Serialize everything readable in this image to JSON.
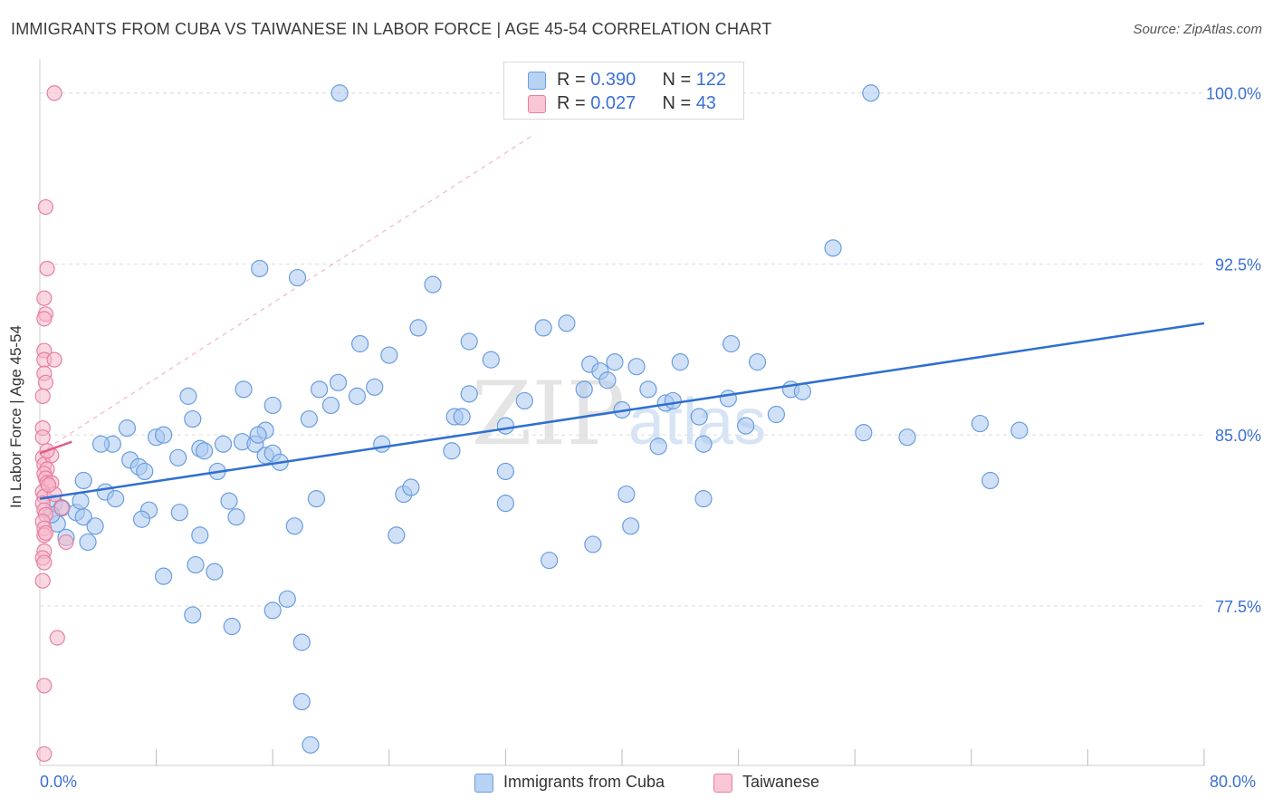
{
  "header": {
    "title": "IMMIGRANTS FROM CUBA VS TAIWANESE IN LABOR FORCE | AGE 45-54 CORRELATION CHART",
    "source": "Source: ZipAtlas.com"
  },
  "legend_top": {
    "rows": [
      {
        "r_label": "R = ",
        "r_value": "0.390",
        "n_label": "N = ",
        "n_value": "122"
      },
      {
        "r_label": "R = ",
        "r_value": "0.027",
        "n_label": "N = ",
        "n_value": "43"
      }
    ]
  },
  "legend_bottom": {
    "items": [
      {
        "label": "Immigrants from Cuba"
      },
      {
        "label": "Taiwanese"
      }
    ]
  },
  "watermark": {
    "zip": "ZIP",
    "atlas": "atlas"
  },
  "colors": {
    "blue_fill": "#aac8f0",
    "blue_stroke": "#6a9de0",
    "blue_line": "#2f6fd0",
    "pink_fill": "#f6b8cb",
    "pink_stroke": "#e87fa0",
    "pink_line": "#e0608c",
    "axis_text": "#3a6fd8",
    "grid": "#dddddd"
  },
  "chart_data": {
    "type": "scatter",
    "title": "IMMIGRANTS FROM CUBA VS TAIWANESE IN LABOR FORCE | AGE 45-54 CORRELATION CHART",
    "xlabel": "",
    "ylabel": "In Labor Force | Age 45-54",
    "xlim": [
      0,
      80
    ],
    "ylim": [
      70.5,
      101.5
    ],
    "x_tick_labels": [
      "0.0%",
      "80.0%"
    ],
    "y_ticks": [
      77.5,
      85.0,
      92.5,
      100.0
    ],
    "y_tick_labels": [
      "77.5%",
      "85.0%",
      "92.5%",
      "100.0%"
    ],
    "grid": true,
    "legend_position": "top-center",
    "series": [
      {
        "name": "Immigrants from Cuba",
        "color": "#aac8f0",
        "trend": {
          "x": [
            0,
            80
          ],
          "y": [
            82.2,
            89.9
          ]
        },
        "points": [
          [
            1.0,
            82.0
          ],
          [
            1.5,
            81.8
          ],
          [
            2.5,
            81.6
          ],
          [
            1.2,
            81.1
          ],
          [
            0.8,
            81.5
          ],
          [
            1.8,
            80.5
          ],
          [
            3.3,
            80.3
          ],
          [
            3.0,
            81.4
          ],
          [
            2.8,
            82.1
          ],
          [
            3.8,
            81.0
          ],
          [
            3.0,
            83.0
          ],
          [
            4.5,
            82.5
          ],
          [
            5.2,
            82.2
          ],
          [
            6.2,
            83.9
          ],
          [
            6.8,
            83.6
          ],
          [
            7.2,
            83.4
          ],
          [
            5.0,
            84.6
          ],
          [
            4.2,
            84.6
          ],
          [
            6.0,
            85.3
          ],
          [
            8.0,
            84.9
          ],
          [
            8.5,
            85.0
          ],
          [
            7.5,
            81.7
          ],
          [
            7.0,
            81.3
          ],
          [
            9.6,
            81.6
          ],
          [
            9.5,
            84.0
          ],
          [
            10.5,
            85.7
          ],
          [
            11.0,
            84.4
          ],
          [
            11.3,
            84.3
          ],
          [
            12.6,
            84.6
          ],
          [
            13.9,
            84.7
          ],
          [
            14.8,
            84.6
          ],
          [
            15.5,
            84.1
          ],
          [
            16.0,
            84.2
          ],
          [
            16.5,
            83.8
          ],
          [
            12.2,
            83.4
          ],
          [
            10.2,
            86.7
          ],
          [
            13.0,
            82.1
          ],
          [
            13.5,
            81.4
          ],
          [
            10.7,
            79.3
          ],
          [
            12.0,
            79.0
          ],
          [
            11.0,
            80.6
          ],
          [
            8.5,
            78.8
          ],
          [
            10.5,
            77.1
          ],
          [
            13.2,
            76.6
          ],
          [
            16.0,
            77.3
          ],
          [
            17.0,
            77.8
          ],
          [
            18.0,
            75.9
          ],
          [
            18.0,
            73.3
          ],
          [
            18.6,
            71.4
          ],
          [
            17.5,
            81.0
          ],
          [
            18.5,
            85.7
          ],
          [
            19.0,
            82.2
          ],
          [
            19.2,
            87.0
          ],
          [
            20.0,
            86.3
          ],
          [
            20.5,
            87.3
          ],
          [
            21.8,
            86.7
          ],
          [
            22.0,
            89.0
          ],
          [
            23.0,
            87.1
          ],
          [
            24.0,
            88.5
          ],
          [
            23.5,
            84.6
          ],
          [
            24.5,
            80.6
          ],
          [
            25.0,
            82.4
          ],
          [
            25.5,
            82.7
          ],
          [
            26.0,
            89.7
          ],
          [
            27.0,
            91.6
          ],
          [
            28.3,
            84.3
          ],
          [
            28.5,
            85.8
          ],
          [
            29.0,
            85.8
          ],
          [
            29.5,
            89.1
          ],
          [
            29.5,
            86.8
          ],
          [
            31.0,
            88.3
          ],
          [
            32.0,
            85.4
          ],
          [
            32.0,
            83.4
          ],
          [
            32.0,
            82.0
          ],
          [
            33.3,
            86.5
          ],
          [
            34.6,
            89.7
          ],
          [
            35.0,
            79.5
          ],
          [
            36.2,
            89.9
          ],
          [
            37.4,
            87.0
          ],
          [
            37.8,
            88.1
          ],
          [
            38.5,
            87.8
          ],
          [
            38.0,
            80.2
          ],
          [
            39.0,
            87.4
          ],
          [
            39.5,
            88.2
          ],
          [
            40.0,
            86.1
          ],
          [
            40.3,
            82.4
          ],
          [
            40.6,
            81.0
          ],
          [
            41.0,
            88.0
          ],
          [
            41.8,
            87.0
          ],
          [
            43.0,
            86.4
          ],
          [
            42.5,
            84.5
          ],
          [
            43.5,
            86.5
          ],
          [
            44.0,
            88.2
          ],
          [
            45.3,
            85.8
          ],
          [
            45.6,
            84.6
          ],
          [
            45.6,
            82.2
          ],
          [
            47.3,
            86.6
          ],
          [
            47.5,
            89.0
          ],
          [
            48.5,
            85.4
          ],
          [
            49.3,
            88.2
          ],
          [
            50.6,
            85.9
          ],
          [
            51.6,
            87.0
          ],
          [
            52.4,
            86.9
          ],
          [
            54.5,
            93.2
          ],
          [
            56.6,
            85.1
          ],
          [
            59.6,
            84.9
          ],
          [
            64.6,
            85.5
          ],
          [
            65.3,
            83.0
          ],
          [
            67.3,
            85.2
          ],
          [
            20.6,
            100.0
          ],
          [
            57.1,
            100.0
          ],
          [
            15.1,
            92.3
          ],
          [
            17.7,
            91.9
          ],
          [
            16.0,
            86.3
          ],
          [
            14.0,
            87.0
          ],
          [
            15.5,
            85.2
          ],
          [
            15.0,
            85.0
          ]
        ]
      },
      {
        "name": "Taiwanese",
        "color": "#f6b8cb",
        "trend": {
          "x": [
            0,
            2.2
          ],
          "y": [
            84.2,
            84.7
          ]
        },
        "points": [
          [
            1.0,
            100.0
          ],
          [
            0.4,
            95.0
          ],
          [
            0.5,
            92.3
          ],
          [
            0.3,
            91.0
          ],
          [
            0.4,
            90.3
          ],
          [
            0.3,
            90.1
          ],
          [
            0.3,
            88.7
          ],
          [
            0.3,
            88.3
          ],
          [
            1.0,
            88.3
          ],
          [
            0.3,
            87.7
          ],
          [
            0.4,
            87.3
          ],
          [
            0.2,
            86.7
          ],
          [
            0.2,
            85.3
          ],
          [
            0.2,
            84.9
          ],
          [
            0.2,
            84.0
          ],
          [
            0.3,
            83.7
          ],
          [
            0.5,
            83.5
          ],
          [
            0.3,
            83.3
          ],
          [
            0.4,
            83.1
          ],
          [
            0.5,
            82.9
          ],
          [
            0.8,
            82.9
          ],
          [
            0.2,
            82.5
          ],
          [
            0.3,
            82.3
          ],
          [
            0.2,
            82.0
          ],
          [
            0.3,
            81.7
          ],
          [
            0.4,
            81.5
          ],
          [
            0.2,
            81.2
          ],
          [
            0.3,
            80.9
          ],
          [
            0.3,
            80.6
          ],
          [
            0.4,
            80.7
          ],
          [
            1.8,
            80.3
          ],
          [
            0.3,
            79.9
          ],
          [
            0.2,
            79.6
          ],
          [
            0.3,
            79.4
          ],
          [
            0.2,
            78.6
          ],
          [
            1.2,
            76.1
          ],
          [
            0.3,
            74.0
          ],
          [
            0.3,
            71.0
          ],
          [
            1.5,
            81.8
          ],
          [
            1.0,
            82.4
          ],
          [
            0.6,
            82.8
          ],
          [
            0.8,
            84.1
          ],
          [
            0.5,
            84.3
          ]
        ]
      }
    ]
  }
}
